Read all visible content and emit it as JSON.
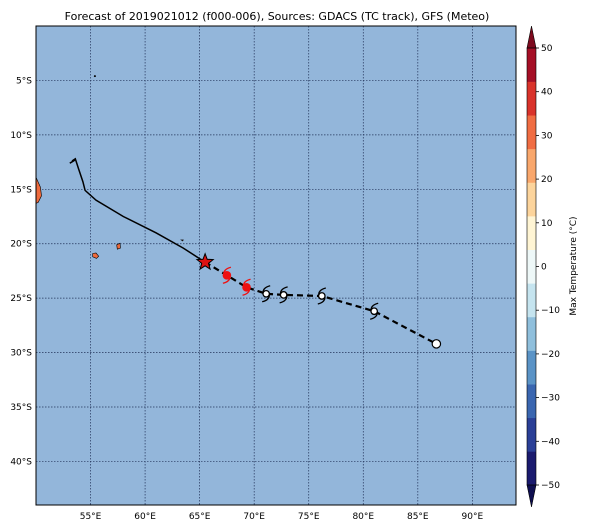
{
  "title": "Forecast of 2019021012 (f000-006), Sources: GDACS (TC track), GFS (Meteo)",
  "map": {
    "extent": {
      "lon_min": 50,
      "lon_max": 94,
      "lat_min": -44,
      "lat_max": 0
    },
    "ocean_color": "#93b6da",
    "grid": true,
    "lon_ticks": [
      55,
      60,
      65,
      70,
      75,
      80,
      85,
      90
    ],
    "lon_tick_labels": [
      "55°E",
      "60°E",
      "65°E",
      "70°E",
      "75°E",
      "80°E",
      "85°E",
      "90°E"
    ],
    "lat_ticks": [
      -5,
      -10,
      -15,
      -20,
      -25,
      -30,
      -35,
      -40
    ],
    "lat_tick_labels": [
      "5°S",
      "10°S",
      "15°S",
      "20°S",
      "25°S",
      "30°S",
      "35°S",
      "40°S"
    ]
  },
  "land": [
    {
      "name": "madagascar",
      "color": "#ef6a3c",
      "points": [
        [
          50,
          -13.9
        ],
        [
          50.4,
          -14.8
        ],
        [
          50.5,
          -15.6
        ],
        [
          50.2,
          -16.2
        ],
        [
          50,
          -16.3
        ]
      ]
    },
    {
      "name": "reunion",
      "color": "#ef6a3c",
      "points": [
        [
          55.2,
          -20.9
        ],
        [
          55.5,
          -20.85
        ],
        [
          55.75,
          -21.15
        ],
        [
          55.55,
          -21.35
        ],
        [
          55.2,
          -21.2
        ]
      ]
    },
    {
      "name": "mauritius",
      "color": "#ef6a3c",
      "points": [
        [
          57.4,
          -20.1
        ],
        [
          57.7,
          -19.95
        ],
        [
          57.75,
          -20.4
        ],
        [
          57.45,
          -20.5
        ]
      ]
    },
    {
      "name": "rodrigues",
      "color": "#ef6a3c",
      "points": [
        [
          63.3,
          -19.65
        ],
        [
          63.5,
          -19.65
        ],
        [
          63.45,
          -19.75
        ]
      ]
    }
  ],
  "islet": {
    "lon": 55.4,
    "lat": -4.6
  },
  "track": {
    "past": [
      [
        53.3,
        -12.4
      ],
      [
        53.6,
        -12.2
      ],
      [
        53.9,
        -13.1
      ],
      [
        54.3,
        -14.3
      ],
      [
        54.5,
        -15.1
      ],
      [
        55.5,
        -16.0
      ],
      [
        58,
        -17.5
      ],
      [
        61,
        -19.0
      ],
      [
        63.5,
        -20.4
      ],
      [
        65.5,
        -21.7
      ]
    ],
    "past_stub": [
      [
        53.1,
        -12.6
      ],
      [
        53.6,
        -12.3
      ]
    ],
    "current": {
      "lon": 65.5,
      "lat": -21.7,
      "color": "#dd1111"
    },
    "forecast": [
      [
        65.5,
        -21.7
      ],
      [
        67.5,
        -22.9
      ],
      [
        69.3,
        -24.0
      ],
      [
        71.1,
        -24.6
      ],
      [
        72.7,
        -24.7
      ],
      [
        76.2,
        -24.8
      ],
      [
        81,
        -26.2
      ],
      [
        86.7,
        -29.2
      ]
    ],
    "forecast_points": [
      {
        "lon": 67.5,
        "lat": -22.9,
        "color": "#ee1111",
        "symbol": "hurricane"
      },
      {
        "lon": 69.3,
        "lat": -24.0,
        "color": "#ee1111",
        "symbol": "hurricane"
      },
      {
        "lon": 71.1,
        "lat": -24.6,
        "color": "#000000",
        "symbol": "storm"
      },
      {
        "lon": 72.7,
        "lat": -24.7,
        "color": "#000000",
        "symbol": "storm"
      },
      {
        "lon": 76.2,
        "lat": -24.8,
        "color": "#000000",
        "symbol": "storm"
      },
      {
        "lon": 81.0,
        "lat": -26.2,
        "color": "#000000",
        "symbol": "storm"
      },
      {
        "lon": 86.7,
        "lat": -29.2,
        "color": "#000000",
        "symbol": "low"
      }
    ]
  },
  "colorbar": {
    "label": "Max Temperature (°C)",
    "min": -50,
    "max": 50,
    "ticks": [
      50,
      40,
      30,
      20,
      10,
      0,
      -10,
      -20,
      -30,
      -40,
      -50
    ],
    "tick_labels": [
      "50",
      "40",
      "30",
      "20",
      "10",
      "0",
      "−10",
      "−20",
      "−30",
      "−40",
      "−50"
    ],
    "colors_bottom_to_top": [
      "#1a1a6e",
      "#2a3f96",
      "#3a66b0",
      "#5a93c6",
      "#8fbfdc",
      "#c5e4ef",
      "#eef8f8",
      "#fff5d4",
      "#fcd49c",
      "#f9a76c",
      "#f06d43",
      "#d9332b",
      "#a50f26"
    ],
    "extend_low_color": "#0e0e50",
    "extend_high_color": "#7d0a1e"
  }
}
